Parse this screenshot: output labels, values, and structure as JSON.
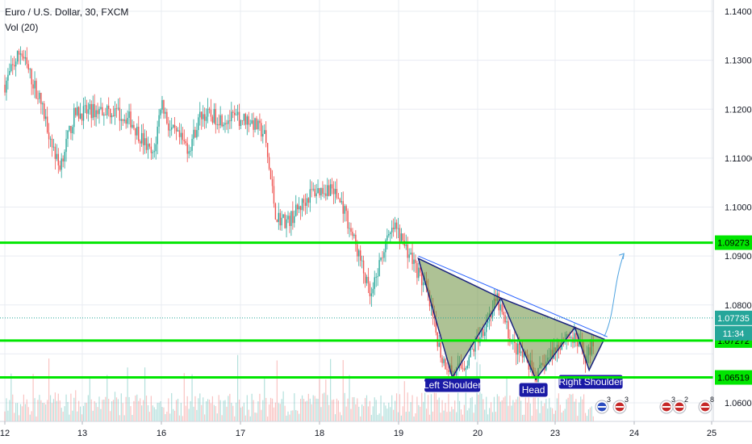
{
  "chart_data": {
    "type": "candlestick",
    "symbol_title": "Euro / U.S. Dollar, 30, FXCM",
    "volume_label": "Vol (20)",
    "y_axis": {
      "min": 1.058,
      "max": 1.144,
      "tick_labels": [
        "1.14000",
        "1.13000",
        "1.12000",
        "1.11000",
        "1.10000",
        "1.09000",
        "1.08000",
        "1.06000"
      ],
      "tick_values": [
        1.14,
        1.13,
        1.12,
        1.11,
        1.1,
        1.09,
        1.08,
        1.06
      ]
    },
    "x_axis": {
      "tick_labels": [
        "12",
        "13",
        "16",
        "17",
        "18",
        "19",
        "20",
        "23",
        "24",
        "25"
      ],
      "tick_index": [
        0,
        1,
        2,
        3,
        4,
        5,
        6,
        7,
        8,
        9
      ]
    },
    "ohlc_path": [
      [
        0,
        1.125
      ],
      [
        0.2,
        1.132
      ],
      [
        0.45,
        1.122
      ],
      [
        0.7,
        1.108
      ],
      [
        0.9,
        1.119
      ],
      [
        1.3,
        1.12
      ],
      [
        1.6,
        1.118
      ],
      [
        1.9,
        1.11
      ],
      [
        2.0,
        1.122
      ],
      [
        2.1,
        1.116
      ],
      [
        2.35,
        1.112
      ],
      [
        2.5,
        1.119
      ],
      [
        2.8,
        1.118
      ],
      [
        3.1,
        1.118
      ],
      [
        3.3,
        1.115
      ],
      [
        3.45,
        1.098
      ],
      [
        3.6,
        1.097
      ],
      [
        3.9,
        1.103
      ],
      [
        4.15,
        1.104
      ],
      [
        4.3,
        1.1
      ],
      [
        4.5,
        1.09
      ],
      [
        4.65,
        1.081
      ],
      [
        4.8,
        1.091
      ],
      [
        4.95,
        1.096
      ],
      [
        5.15,
        1.09
      ],
      [
        5.35,
        1.083
      ],
      [
        5.55,
        1.069
      ],
      [
        5.7,
        1.066
      ],
      [
        5.85,
        1.068
      ],
      [
        6.0,
        1.073
      ],
      [
        6.25,
        1.081
      ],
      [
        6.45,
        1.072
      ],
      [
        6.65,
        1.068
      ],
      [
        6.75,
        1.065
      ],
      [
        6.95,
        1.07
      ],
      [
        7.15,
        1.074
      ],
      [
        7.3,
        1.072
      ],
      [
        7.4,
        1.069
      ],
      [
        7.5,
        1.0735
      ]
    ],
    "horizontal_levels": [
      {
        "value": 1.09273,
        "label": "1.09273",
        "color": "#00e600"
      },
      {
        "value": 1.07272,
        "label": "1.07272",
        "color": "#00e600"
      },
      {
        "value": 1.06519,
        "label": "1.06519",
        "color": "#00e600"
      }
    ],
    "current_price": {
      "value": 1.07735,
      "label": "1.07735",
      "color": "#26a69a"
    },
    "countdown_label": "11:34",
    "pattern": {
      "name_labels": [
        "Left Shoulder",
        "Head",
        "Right Shoulder"
      ],
      "fill_color": "#6b8f3e",
      "line_color": "#1a237e",
      "neckline_color": "#2962ff"
    },
    "projection_arrow_color": "#4fa3e0",
    "event_badges": [
      {
        "count": "3",
        "flag": "EU"
      },
      {
        "count": "3",
        "flag": "US"
      },
      {
        "count": "3",
        "flag": "US"
      },
      {
        "count": "2",
        "flag": "US"
      },
      {
        "count": "8",
        "flag": "US"
      }
    ],
    "colors": {
      "up": "#26a69a",
      "down": "#ef5350",
      "grid": "#e9ecf2",
      "axis_text": "#131722",
      "level_line": "#00e600"
    }
  }
}
